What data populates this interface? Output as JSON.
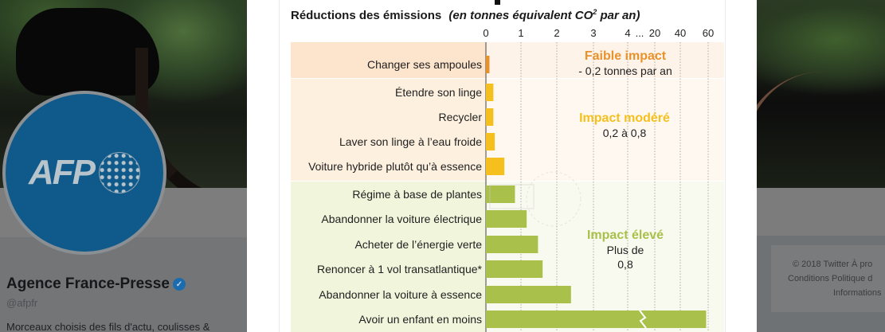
{
  "profile": {
    "name": "Agence France-Presse",
    "handle": "@afpfr",
    "bio": "Morceaux choisis des fils d'actu, coulisses &",
    "avatar_logo": "AFP",
    "verified": true
  },
  "footer": {
    "line1": "© 2018 Twitter   À pro",
    "line2": "Conditions   Politique d",
    "line3": "Informations"
  },
  "colors": {
    "faible": "#e8922c",
    "modere": "#f5c01e",
    "eleve": "#a9c04a",
    "faible_bg": "#fde4cc",
    "modere_bg": "#fdf0df",
    "eleve_bg": "#f1f5dc",
    "avatar": "#0f5a8a"
  },
  "chart_data": {
    "type": "bar",
    "orientation": "horizontal",
    "title": "Réductions des émissions",
    "subtitle": "(en tonnes équivalent CO² par an)",
    "subtitle_parts": {
      "prefix": "(en tonnes équivalent CO",
      "sup": "2",
      "suffix": " par an)"
    },
    "xlabel": "",
    "ylabel": "",
    "x_ticks": [
      {
        "label": "0",
        "value": 0
      },
      {
        "label": "1",
        "value": 1
      },
      {
        "label": "2",
        "value": 2
      },
      {
        "label": "3",
        "value": 3
      },
      {
        "label": "4",
        "value": 4
      },
      {
        "label": "...",
        "value": null
      },
      {
        "label": "20",
        "value": 20
      },
      {
        "label": "40",
        "value": 40
      },
      {
        "label": "60",
        "value": 60
      }
    ],
    "grid": true,
    "axis_break": "after 4",
    "groups": [
      {
        "name": "Faible impact",
        "range_label": "- 0,2 tonnes par an",
        "range_label_lines": [
          "- 0,2 tonnes par an"
        ],
        "color": "#e8922c",
        "bg": "#fde4cc",
        "items": [
          {
            "label": "Changer ses ampoules",
            "value": 0.1
          }
        ]
      },
      {
        "name": "Impact modéré",
        "range_label": "0,2 à 0,8",
        "range_label_lines": [
          "0,2 à 0,8"
        ],
        "color": "#f5c01e",
        "bg": "#fdf0df",
        "items": [
          {
            "label": "Étendre son linge",
            "value": 0.21
          },
          {
            "label": "Recycler",
            "value": 0.21
          },
          {
            "label": "Laver son linge à l’eau froide",
            "value": 0.25
          },
          {
            "label": "Voiture hybride plutôt qu’à essence",
            "value": 0.52
          }
        ]
      },
      {
        "name": "Impact élevé",
        "range_label": "Plus de 0,8",
        "range_label_lines": [
          "Plus de",
          "0,8"
        ],
        "color": "#a9c04a",
        "bg": "#f1f5dc",
        "items": [
          {
            "label": "Régime à base de plantes",
            "value": 0.82
          },
          {
            "label": "Abandonner la voiture électrique",
            "value": 1.15
          },
          {
            "label": "Acheter de l’énergie verte",
            "value": 1.47
          },
          {
            "label": "Renoncer à 1 vol transatlantique*",
            "value": 1.6
          },
          {
            "label": "Abandonner la voiture à essence",
            "value": 2.4
          },
          {
            "label": "Avoir un enfant en moins",
            "value": 58.6,
            "broken": true
          }
        ]
      }
    ]
  }
}
